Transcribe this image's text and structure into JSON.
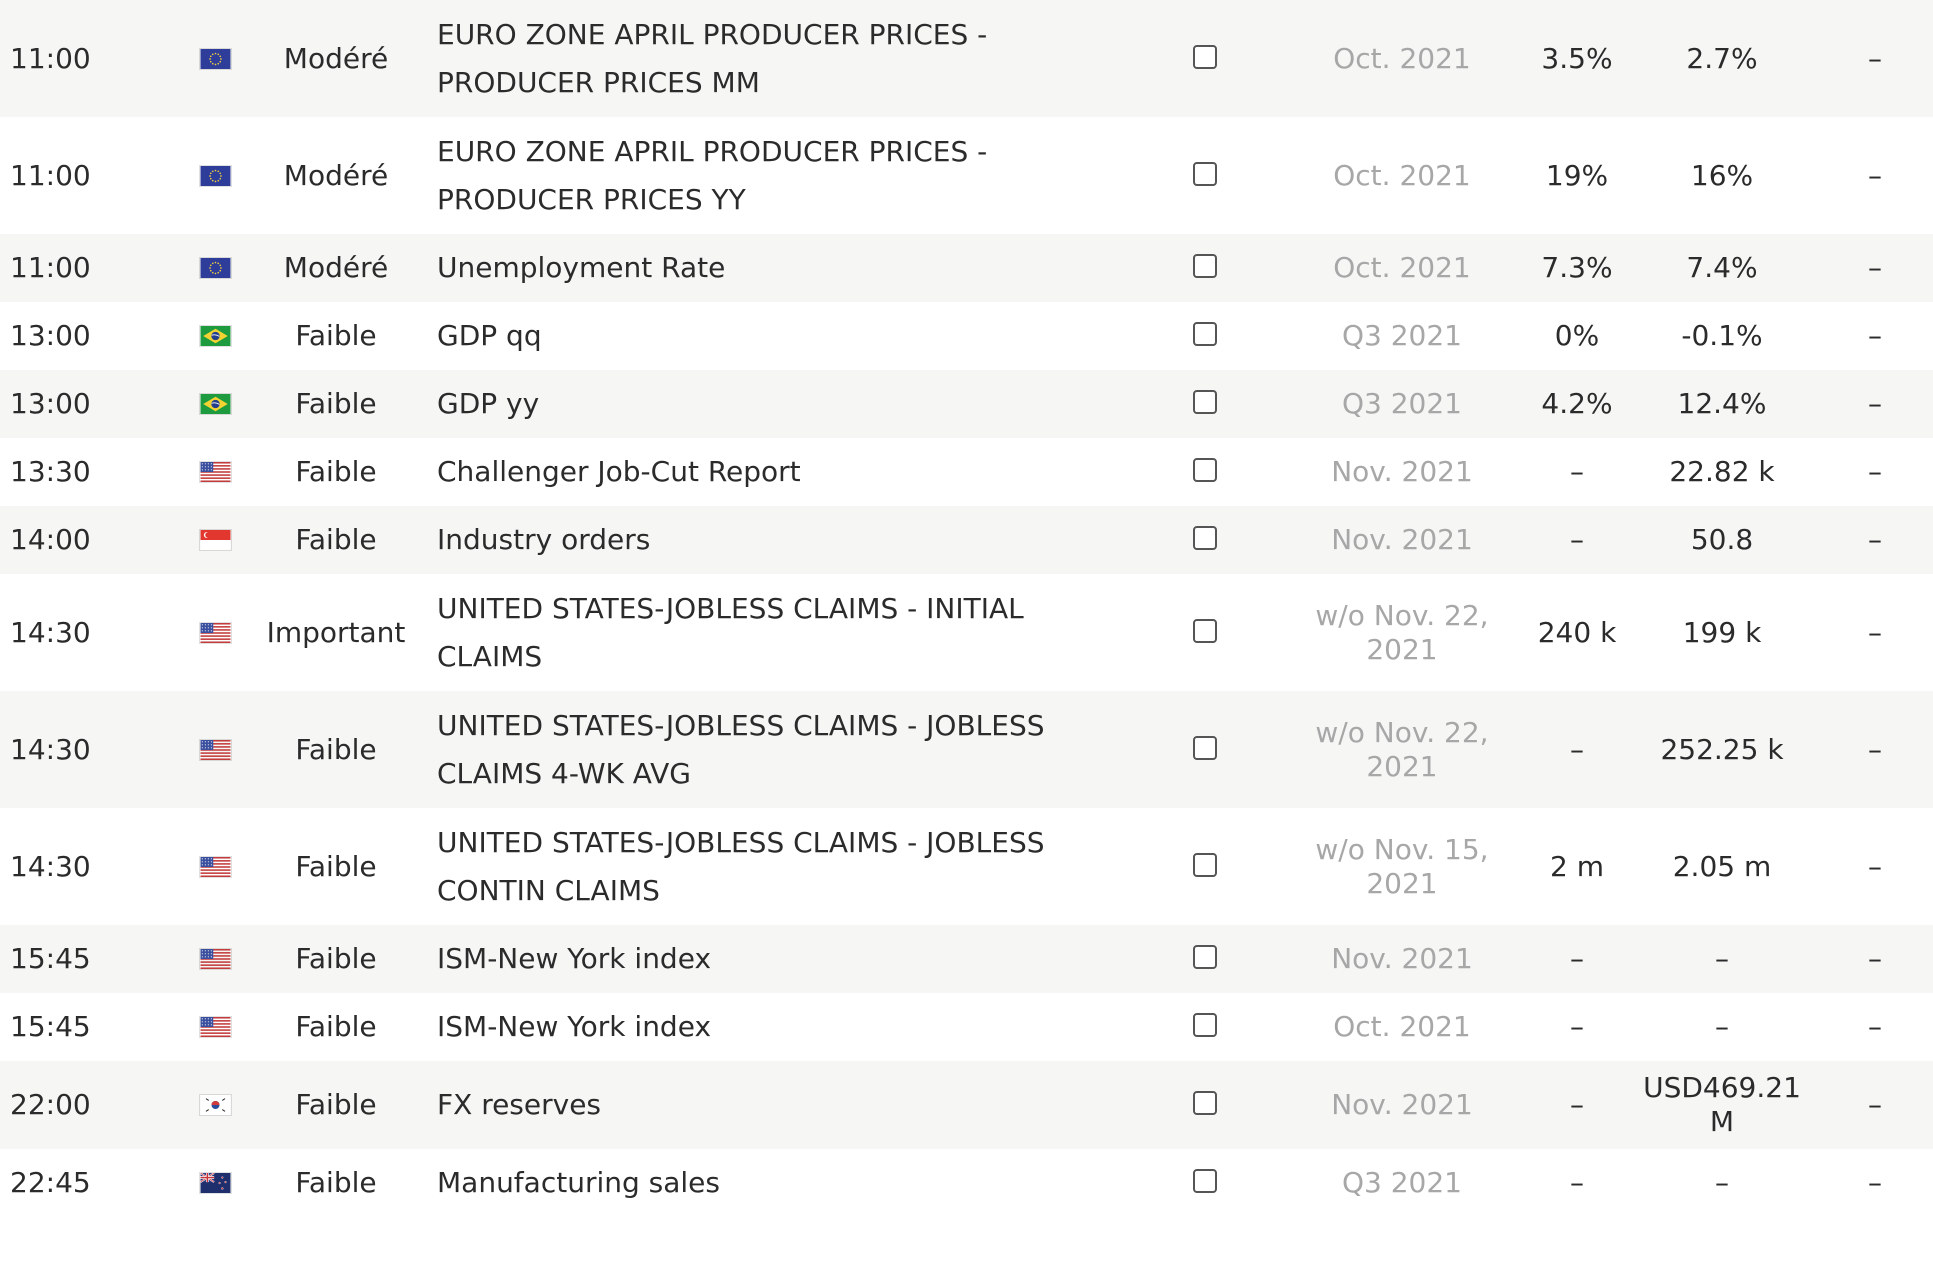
{
  "colors": {
    "text": "#2b2b2b",
    "muted": "#a7a7a7",
    "row_alt": "#f6f6f4"
  },
  "rows": [
    {
      "time": "11:00",
      "flag": "eu-flag-icon",
      "importance": "Modéré",
      "event": "EURO ZONE APRIL PRODUCER PRICES - PRODUCER PRICES MM",
      "period": "Oct. 2021",
      "actual": "3.5%",
      "previous": "2.7%",
      "forecast": "–"
    },
    {
      "time": "11:00",
      "flag": "eu-flag-icon",
      "importance": "Modéré",
      "event": "EURO ZONE APRIL PRODUCER PRICES - PRODUCER PRICES YY",
      "period": "Oct. 2021",
      "actual": "19%",
      "previous": "16%",
      "forecast": "–"
    },
    {
      "time": "11:00",
      "flag": "eu-flag-icon",
      "importance": "Modéré",
      "event": "Unemployment Rate",
      "period": "Oct. 2021",
      "actual": "7.3%",
      "previous": "7.4%",
      "forecast": "–"
    },
    {
      "time": "13:00",
      "flag": "brazil-flag-icon",
      "importance": "Faible",
      "event": "GDP qq",
      "period": "Q3 2021",
      "actual": "0%",
      "previous": "-0.1%",
      "forecast": "–"
    },
    {
      "time": "13:00",
      "flag": "brazil-flag-icon",
      "importance": "Faible",
      "event": "GDP yy",
      "period": "Q3 2021",
      "actual": "4.2%",
      "previous": "12.4%",
      "forecast": "–"
    },
    {
      "time": "13:30",
      "flag": "usa-flag-icon",
      "importance": "Faible",
      "event": "Challenger Job-Cut Report",
      "period": "Nov. 2021",
      "actual": "–",
      "previous": "22.82 k",
      "forecast": "–"
    },
    {
      "time": "14:00",
      "flag": "singapore-flag-icon",
      "importance": "Faible",
      "event": "Industry orders",
      "period": "Nov. 2021",
      "actual": "–",
      "previous": "50.8",
      "forecast": "–"
    },
    {
      "time": "14:30",
      "flag": "usa-flag-icon",
      "importance": "Important",
      "event": "UNITED STATES-JOBLESS CLAIMS - INITIAL CLAIMS",
      "period": "w/o Nov. 22, 2021",
      "actual": "240 k",
      "previous": "199 k",
      "forecast": "–"
    },
    {
      "time": "14:30",
      "flag": "usa-flag-icon",
      "importance": "Faible",
      "event": "UNITED STATES-JOBLESS CLAIMS - JOBLESS CLAIMS 4-WK AVG",
      "period": "w/o Nov. 22, 2021",
      "actual": "–",
      "previous": "252.25 k",
      "forecast": "–"
    },
    {
      "time": "14:30",
      "flag": "usa-flag-icon",
      "importance": "Faible",
      "event": "UNITED STATES-JOBLESS CLAIMS - JOBLESS CONTIN CLAIMS",
      "period": "w/o Nov. 15, 2021",
      "actual": "2 m",
      "previous": "2.05 m",
      "forecast": "–"
    },
    {
      "time": "15:45",
      "flag": "usa-flag-icon",
      "importance": "Faible",
      "event": "ISM-New York index",
      "period": "Nov. 2021",
      "actual": "–",
      "previous": "–",
      "forecast": "–"
    },
    {
      "time": "15:45",
      "flag": "usa-flag-icon",
      "importance": "Faible",
      "event": "ISM-New York index",
      "period": "Oct. 2021",
      "actual": "–",
      "previous": "–",
      "forecast": "–"
    },
    {
      "time": "22:00",
      "flag": "south-korea-flag-icon",
      "importance": "Faible",
      "event": "FX reserves",
      "period": "Nov. 2021",
      "actual": "–",
      "previous": "USD469.21 M",
      "forecast": "–"
    },
    {
      "time": "22:45",
      "flag": "new-zealand-flag-icon",
      "importance": "Faible",
      "event": "Manufacturing sales",
      "period": "Q3 2021",
      "actual": "–",
      "previous": "–",
      "forecast": "–"
    }
  ]
}
